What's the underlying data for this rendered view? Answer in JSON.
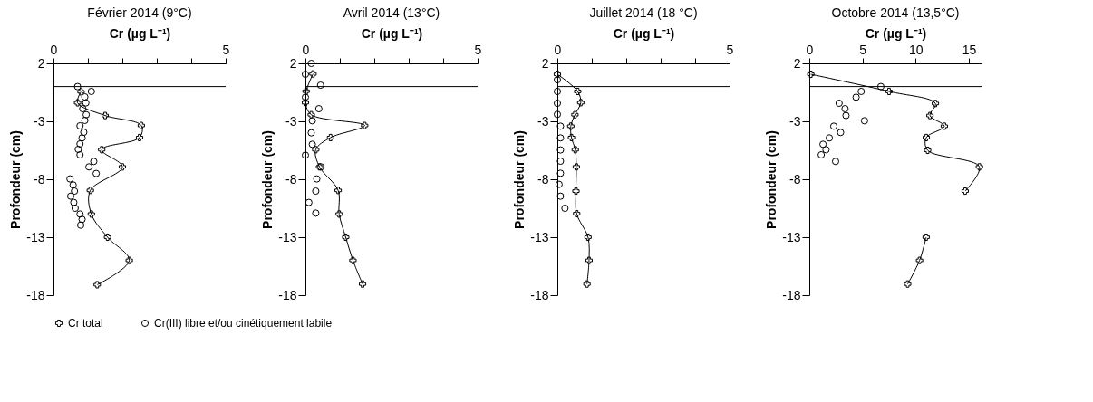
{
  "chart_data": [
    {
      "type": "line",
      "title": "Février 2014 (9°C)",
      "xlabel": "Cr (µg L⁻¹)",
      "ylabel": "Profondeur (cm)",
      "xlim": [
        0,
        5
      ],
      "xticks": [
        0,
        {
          "value": 1,
          "label": null
        },
        {
          "value": 2,
          "label": null
        },
        {
          "value": 3,
          "label": null
        },
        {
          "value": 4,
          "label": null
        },
        5
      ],
      "ylim": [
        -18,
        2
      ],
      "yticks": [
        2,
        -3,
        -8,
        -13,
        -18
      ],
      "ref_lines": [
        {
          "axis": "y",
          "value": 0
        }
      ],
      "legend": "bottom",
      "series": [
        {
          "name": "Cr total",
          "type": "line",
          "marker": "cross",
          "color": "#000000",
          "x": [
            0.8,
            0.7,
            1.5,
            2.55,
            2.5,
            1.4,
            2.0,
            1.07,
            1.1,
            1.57,
            2.2,
            1.27
          ],
          "values": [
            -0.45,
            -1.4,
            -2.5,
            -3.36,
            -4.4,
            -5.45,
            -6.93,
            -8.96,
            -11.0,
            -13.0,
            -15.0,
            -17.1
          ]
        },
        {
          "name": "Cr(III) libre et/ou cinétiquement labile",
          "type": "scatter",
          "marker": "circle",
          "color": "#000000",
          "x": [
            0.7,
            1.1,
            0.91,
            0.94,
            0.85,
            0.95,
            0.91,
            0.77,
            0.88,
            0.83,
            0.77,
            0.72,
            0.77,
            1.17,
            1.03,
            1.24,
            0.48,
            0.57,
            0.61,
            0.5,
            0.59,
            0.63,
            0.77,
            0.83,
            0.79
          ],
          "values": [
            0.0,
            -0.42,
            -0.89,
            -1.41,
            -1.91,
            -2.43,
            -2.92,
            -3.39,
            -3.94,
            -4.43,
            -4.95,
            -5.42,
            -5.89,
            -6.46,
            -6.93,
            -7.5,
            -7.97,
            -8.49,
            -9.02,
            -9.46,
            -10.0,
            -10.5,
            -11.0,
            -11.46,
            -11.96
          ]
        }
      ]
    },
    {
      "type": "line",
      "title": "Avril 2014 (13°C)",
      "xlabel": "Cr (µg L⁻¹)",
      "ylabel": "Profondeur (cm)",
      "xlim": [
        0,
        5
      ],
      "xticks": [
        0,
        {
          "value": 1,
          "label": null
        },
        {
          "value": 2,
          "label": null
        },
        {
          "value": 3,
          "label": null
        },
        {
          "value": 4,
          "label": null
        },
        5
      ],
      "ylim": [
        -18,
        2
      ],
      "yticks": [
        2,
        -3,
        -8,
        -13,
        -18
      ],
      "ref_lines": [
        {
          "axis": "y",
          "value": 0
        }
      ],
      "legend": "bottom",
      "series": [
        {
          "name": "Cr total",
          "type": "line",
          "marker": "cross",
          "color": "#000000",
          "x": [
            0.22,
            0.02,
            0.0,
            0.17,
            1.72,
            0.73,
            0.3,
            0.41,
            0.95,
            0.98,
            1.17,
            1.38,
            1.66
          ],
          "values": [
            1.09,
            -0.4,
            -1.39,
            -2.43,
            -3.36,
            -4.4,
            -5.45,
            -6.93,
            -8.96,
            -11.0,
            -13.0,
            -15.0,
            -17.04
          ]
        },
        {
          "name": "Cr(III) libre et/ou cinétiquement labile",
          "type": "scatter",
          "marker": "circle",
          "color": "#000000",
          "x": [
            0.17,
            0.0,
            0.44,
            0.0,
            0.39,
            0.2,
            0.17,
            0.2,
            0.0,
            0.45,
            0.33,
            0.3,
            0.1,
            0.3
          ],
          "values": [
            2.0,
            1.06,
            0.12,
            -0.92,
            -1.91,
            -2.95,
            -3.99,
            -4.98,
            -5.92,
            -6.93,
            -7.97,
            -9.02,
            -10.0,
            -10.92
          ]
        }
      ]
    },
    {
      "type": "line",
      "title": "Juillet 2014 (18 °C)",
      "xlabel": "Cr (µg L⁻¹)",
      "ylabel": "Profondeur (cm)",
      "xlim": [
        0,
        5
      ],
      "xticks": [
        0,
        {
          "value": 1,
          "label": null
        },
        {
          "value": 2,
          "label": null
        },
        {
          "value": 3,
          "label": null
        },
        {
          "value": 4,
          "label": null
        },
        5
      ],
      "ylim": [
        -18,
        2
      ],
      "yticks": [
        2,
        -3,
        -8,
        -13,
        -18
      ],
      "ref_lines": [
        {
          "axis": "y",
          "value": 0
        }
      ],
      "legend": "bottom",
      "series": [
        {
          "name": "Cr total",
          "type": "line",
          "marker": "cross",
          "color": "#000000",
          "x": [
            0.0,
            0.59,
            0.68,
            0.51,
            0.39,
            0.41,
            0.52,
            0.55,
            0.54,
            0.56,
            0.89,
            0.92,
            0.86
          ],
          "values": [
            1.06,
            -0.42,
            -1.39,
            -2.43,
            -3.42,
            -4.4,
            -5.45,
            -6.93,
            -9.02,
            -10.97,
            -13.0,
            -15.0,
            -17.04
          ]
        },
        {
          "name": "Cr(III) libre et/ou cinétiquement labile",
          "type": "scatter",
          "marker": "circle",
          "color": "#000000",
          "x": [
            0.0,
            0.0,
            0.0,
            0.0,
            0.09,
            0.09,
            0.09,
            0.09,
            0.09,
            0.05,
            0.09,
            0.22
          ],
          "values": [
            0.59,
            -0.42,
            -1.44,
            -2.4,
            -3.42,
            -4.43,
            -5.47,
            -6.44,
            -7.48,
            -8.44,
            -9.46,
            -10.5
          ]
        }
      ]
    },
    {
      "type": "line",
      "title": "Octobre 2014 (13,5°C)",
      "xlabel": "Cr (µg L⁻¹)",
      "ylabel": "Profondeur (cm)",
      "xlim": [
        0,
        16.2
      ],
      "xticks": [
        0,
        5,
        10,
        15
      ],
      "ylim": [
        -18,
        2
      ],
      "yticks": [
        2,
        -3,
        -8,
        -13,
        -18
      ],
      "ref_lines": [
        {
          "axis": "y",
          "value": 0
        }
      ],
      "legend": "bottom",
      "series": [
        {
          "name": "Cr total",
          "type": "line",
          "marker": "cross",
          "color": "#000000",
          "x": [
            0.14,
            7.5,
            11.86,
            11.35,
            12.7,
            11.0,
            11.13,
            16.0,
            14.66,
            null,
            10.99,
            10.37,
            9.25
          ],
          "values": [
            1.06,
            -0.42,
            -1.46,
            -2.5,
            -3.42,
            -4.4,
            -5.5,
            -6.93,
            -9.02,
            null,
            -13.0,
            -15.0,
            -17.04
          ]
        },
        {
          "name": "Cr(III) libre et/ou cinétiquement labile",
          "type": "scatter",
          "marker": "circle",
          "color": "#000000",
          "x": [
            6.73,
            4.88,
            4.4,
            2.8,
            3.36,
            3.45,
            5.19,
            2.3,
            2.94,
            1.88,
            1.29,
            1.57,
            1.12,
            2.47
          ],
          "values": [
            0.0,
            -0.42,
            -0.92,
            -1.44,
            -1.91,
            -2.5,
            -2.95,
            -3.42,
            -3.96,
            -4.43,
            -4.98,
            -5.45,
            -5.89,
            -6.46
          ]
        }
      ]
    }
  ]
}
